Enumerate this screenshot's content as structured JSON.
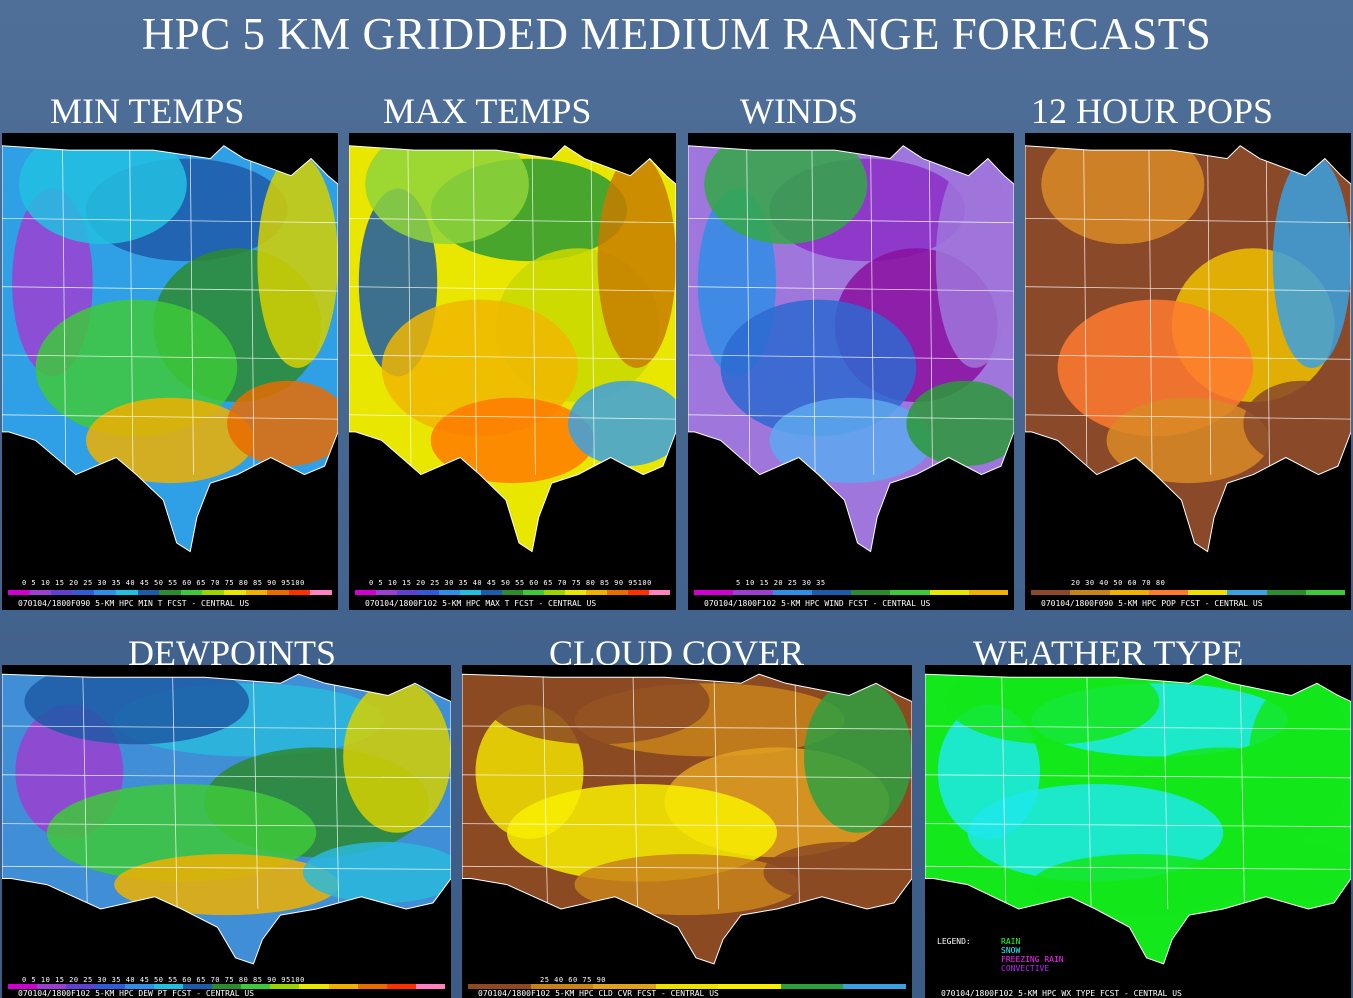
{
  "title": "HPC 5 KM GRIDDED MEDIUM RANGE FORECASTS",
  "panels": [
    {
      "label": "MIN TEMPS",
      "ticks": "0  5 10 15 20 25 30 35 40 45 50 55 60 65 70 75 80 85 90 95100",
      "caption": "070104/1800F090 5-KM HPC MIN T FCST - CENTRAL US",
      "bg": "#2fa0e6",
      "blobs": [
        "#9b3fd0",
        "#1e5aa8",
        "#22c0e0",
        "#2d8a2e",
        "#3ec93a",
        "#d6d000",
        "#f0b000",
        "#e86c00"
      ]
    },
    {
      "label": "MAX TEMPS",
      "ticks": "0  5 10 15 20 25 30 35 40 45 50 55 60 65 70 75 80 85 90 95100",
      "caption": "070104/1800F102 5-KM HPC MAX T FCST - CENTRAL US",
      "bg": "#e9e600",
      "blobs": [
        "#1d5aa5",
        "#2d9a35",
        "#8fd43b",
        "#c9d800",
        "#f0b600",
        "#c77c00",
        "#ff7a00",
        "#3da0e0"
      ]
    },
    {
      "label": "WINDS",
      "ticks": "5     10     15     20     25     30     35",
      "caption": "070104/1800F102 5-KM HPC WIND FCST - CENTRAL US",
      "bg": "#9f76dc",
      "blobs": [
        "#2f8ee8",
        "#8c2fc7",
        "#33a846",
        "#8a10a0",
        "#2d6ad0",
        "#9f76dc",
        "#5da8ee",
        "#2b9a3a"
      ]
    },
    {
      "label": "12 HOUR POPS",
      "ticks": "20     30     40     50     60     70     80",
      "caption": "070104/1800F090 5-KM HPC POP FCST - CENTRAL US",
      "bg": "#8a4a2a",
      "blobs": [
        "#8a4a2a",
        "#8a4a2a",
        "#d88a25",
        "#f0c000",
        "#ff7a30",
        "#3aa0e0",
        "#d88a25",
        "#8a4a2a"
      ]
    },
    {
      "label": "DEWPOINTS",
      "ticks": "0  5 10 15 20 25 30 35 40 45 50 55 60 65 70 75 80 85 90 95100",
      "caption": "070104/1800F102 5-KM HPC DEW PT FCST - CENTRAL US",
      "bg": "#3f8ed6",
      "blobs": [
        "#9b3fd0",
        "#2ab8dc",
        "#1f5aa6",
        "#2d8a2e",
        "#3ec93a",
        "#d6d000",
        "#f0b000",
        "#2ab8dc"
      ]
    },
    {
      "label": "CLOUD COVER",
      "ticks": "25      40      60      75      90",
      "caption": "070104/1800F102 5-KM HPC CLD CVR FCST - CENTRAL US",
      "bg": "#8c4a22",
      "blobs": [
        "#f0e000",
        "#c8821a",
        "#8c4a22",
        "#e0a020",
        "#f8f000",
        "#2ea040",
        "#c8821a",
        "#8c4a22"
      ]
    },
    {
      "label": "WEATHER TYPE",
      "ticks": "",
      "caption": "070104/1800F102 5-KM HPC WX TYPE FCST - CENTRAL US",
      "bg": "#13e81a",
      "blobs": [
        "#1fe8ea",
        "#1fe8ea",
        "#13e81a",
        "#13e81a",
        "#1fe8ea",
        "#13e81a",
        "#13e81a",
        "#13e81a"
      ]
    }
  ],
  "legend": {
    "heading": "LEGEND:",
    "items": [
      {
        "text": "RAIN",
        "color": "#20ff20"
      },
      {
        "text": "SNOW",
        "color": "#20ffff"
      },
      {
        "text": "FREEZING RAIN",
        "color": "#ff20ff"
      },
      {
        "text": "CONVECTIVE",
        "color": "#c020ff"
      }
    ]
  }
}
